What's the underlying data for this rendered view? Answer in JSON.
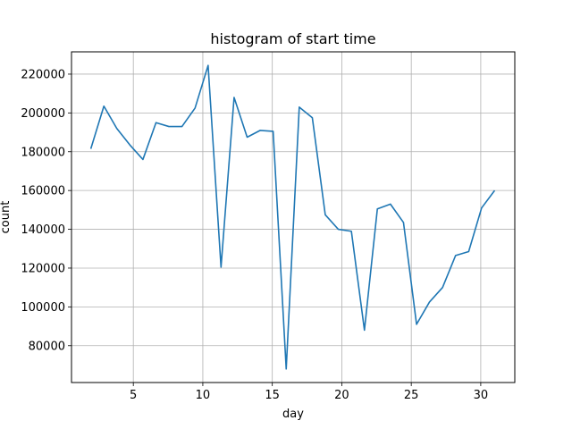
{
  "chart_data": {
    "type": "line",
    "title": "histogram of start time",
    "xlabel": "day",
    "ylabel": "count",
    "xlim": [
      0.55,
      32.45
    ],
    "ylim": [
      61000,
      231500
    ],
    "xticks": [
      5,
      10,
      15,
      20,
      25,
      30
    ],
    "yticks": [
      80000,
      100000,
      120000,
      140000,
      160000,
      180000,
      200000,
      220000
    ],
    "grid": true,
    "line_color": "#1f77b4",
    "series": [
      {
        "x": [
          1.94,
          2.88,
          3.81,
          4.75,
          5.69,
          6.63,
          7.56,
          8.5,
          9.44,
          10.38,
          11.31,
          12.25,
          13.19,
          14.13,
          15.06,
          16.0,
          16.94,
          17.88,
          18.81,
          19.75,
          20.69,
          21.63,
          22.56,
          23.5,
          24.44,
          25.38,
          26.31,
          27.25,
          28.19,
          29.13,
          30.06,
          31.0
        ],
        "y": [
          181500,
          203500,
          192000,
          183500,
          176000,
          195000,
          193000,
          193000,
          202500,
          224500,
          120500,
          208000,
          187500,
          191000,
          190500,
          68000,
          203000,
          197500,
          147500,
          140000,
          139000,
          88000,
          150500,
          153000,
          143500,
          91000,
          102500,
          110000,
          126500,
          128500,
          151000,
          160000
        ]
      }
    ]
  }
}
